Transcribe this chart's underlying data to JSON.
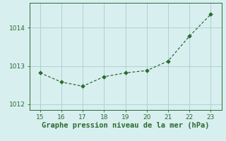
{
  "x": [
    15,
    16,
    17,
    18,
    19,
    20,
    21,
    22,
    23
  ],
  "y": [
    1012.82,
    1012.58,
    1012.47,
    1012.72,
    1012.82,
    1012.88,
    1013.13,
    1013.78,
    1014.35
  ],
  "line_color": "#2d6a2d",
  "marker_color": "#2d6a2d",
  "bg_color": "#d8eff0",
  "grid_color": "#aacccc",
  "xlabel": "Graphe pression niveau de la mer (hPa)",
  "xlabel_color": "#2d6a2d",
  "xlim": [
    14.5,
    23.5
  ],
  "ylim": [
    1011.85,
    1014.65
  ],
  "xticks": [
    15,
    16,
    17,
    18,
    19,
    20,
    21,
    22,
    23
  ],
  "yticks": [
    1012,
    1013,
    1014
  ],
  "tick_color": "#2d6a2d",
  "tick_fontsize": 6.5,
  "xlabel_fontsize": 7.5,
  "line_width": 0.9,
  "marker_size": 2.8
}
